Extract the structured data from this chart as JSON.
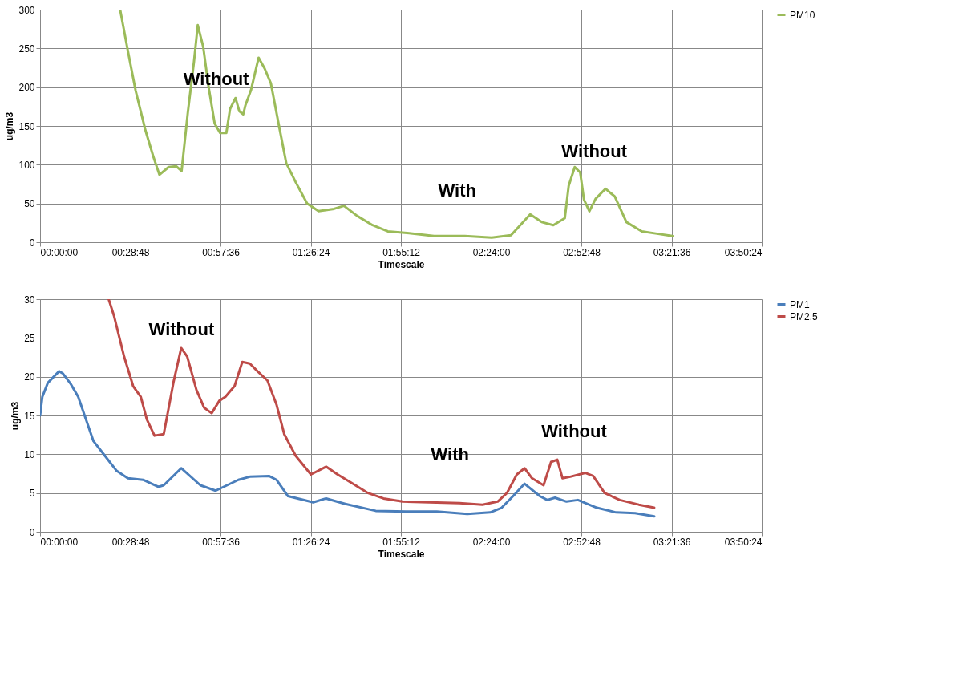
{
  "chart_data": [
    {
      "type": "line",
      "xlabel": "Timescale",
      "ylabel": "ug/m3",
      "xlim": [
        0,
        3.84
      ],
      "ylim": [
        0,
        300
      ],
      "yticks": [
        0,
        50,
        100,
        150,
        200,
        250,
        300
      ],
      "xticks": [
        {
          "value": 0,
          "label": "00:00:00"
        },
        {
          "value": 0.48,
          "label": "00:28:48"
        },
        {
          "value": 0.96,
          "label": "00:57:36"
        },
        {
          "value": 1.44,
          "label": "01:26:24"
        },
        {
          "value": 1.92,
          "label": "01:55:12"
        },
        {
          "value": 2.4,
          "label": "02:24:00"
        },
        {
          "value": 2.88,
          "label": "02:52:48"
        },
        {
          "value": 3.36,
          "label": "03:21:36"
        },
        {
          "value": 3.84,
          "label": "03:50:24"
        }
      ],
      "grid": true,
      "legend": "right",
      "marker": "none",
      "line_style": "solid",
      "annotations": [
        "Without",
        "With",
        "Without"
      ],
      "series": [
        {
          "name": "PM10",
          "color": "#9bbb59",
          "x": [
            0.426,
            0.467,
            0.508,
            0.561,
            0.602,
            0.635,
            0.684,
            0.725,
            0.753,
            0.786,
            0.819,
            0.839,
            0.868,
            0.897,
            0.929,
            0.958,
            0.991,
            1.011,
            1.04,
            1.06,
            1.081,
            1.093,
            1.122,
            1.163,
            1.195,
            1.228,
            1.269,
            1.31,
            1.359,
            1.421,
            1.482,
            1.564,
            1.617,
            1.687,
            1.769,
            1.85,
            1.953,
            2.096,
            2.26,
            2.403,
            2.506,
            2.608,
            2.669,
            2.731,
            2.792,
            2.813,
            2.845,
            2.874,
            2.894,
            2.923,
            2.956,
            3.009,
            3.058,
            3.12,
            3.202,
            3.283,
            3.365
          ],
          "values": [
            300,
            247,
            196,
            144,
            111,
            87,
            97,
            98,
            92,
            167,
            233,
            280,
            252,
            200,
            153,
            141,
            141,
            172,
            186,
            169,
            165,
            177,
            196,
            238,
            224,
            205,
            153,
            102,
            78,
            50,
            40,
            43,
            47,
            34,
            22,
            14,
            12,
            8,
            8,
            6,
            9,
            36,
            26,
            22,
            31,
            73,
            97,
            90,
            55,
            40,
            56,
            69,
            59,
            26,
            14,
            11,
            8
          ]
        }
      ]
    },
    {
      "type": "line",
      "xlabel": "Timescale",
      "ylabel": "ug/m3",
      "xlim": [
        0,
        3.84
      ],
      "ylim": [
        0,
        30
      ],
      "yticks": [
        0,
        5,
        10,
        15,
        20,
        25,
        30
      ],
      "xticks": [
        {
          "value": 0,
          "label": "00:00:00"
        },
        {
          "value": 0.48,
          "label": "00:28:48"
        },
        {
          "value": 0.96,
          "label": "00:57:36"
        },
        {
          "value": 1.44,
          "label": "01:26:24"
        },
        {
          "value": 1.92,
          "label": "01:55:12"
        },
        {
          "value": 2.4,
          "label": "02:24:00"
        },
        {
          "value": 2.88,
          "label": "02:52:48"
        },
        {
          "value": 3.36,
          "label": "03:21:36"
        },
        {
          "value": 3.84,
          "label": "03:50:24"
        }
      ],
      "grid": true,
      "legend": "right",
      "marker": "none",
      "line_style": "solid",
      "annotations": [
        "Without",
        "With",
        "Without"
      ],
      "series": [
        {
          "name": "PM1",
          "color": "#4a7ebb",
          "x": [
            0,
            0.012,
            0.041,
            0.073,
            0.101,
            0.122,
            0.162,
            0.203,
            0.244,
            0.284,
            0.345,
            0.406,
            0.467,
            0.548,
            0.629,
            0.658,
            0.751,
            0.853,
            0.934,
            1.055,
            1.116,
            1.218,
            1.258,
            1.319,
            1.453,
            1.522,
            1.624,
            1.786,
            1.948,
            2.111,
            2.273,
            2.395,
            2.456,
            2.517,
            2.578,
            2.659,
            2.699,
            2.74,
            2.801,
            2.862,
            2.963,
            3.065,
            3.166,
            3.268
          ],
          "values": [
            15,
            17.4,
            19.2,
            20.0,
            20.7,
            20.4,
            19.1,
            17.4,
            14.5,
            11.7,
            9.8,
            7.9,
            6.9,
            6.7,
            5.8,
            6.0,
            8.2,
            6.0,
            5.3,
            6.7,
            7.1,
            7.2,
            6.7,
            4.6,
            3.8,
            4.3,
            3.6,
            2.7,
            2.6,
            2.6,
            2.3,
            2.5,
            3.1,
            4.6,
            6.2,
            4.6,
            4.1,
            4.4,
            3.9,
            4.1,
            3.1,
            2.5,
            2.4,
            2.0
          ]
        },
        {
          "name": "PM2.5",
          "color": "#be4b48",
          "x": [
            0.365,
            0.394,
            0.447,
            0.495,
            0.536,
            0.568,
            0.609,
            0.658,
            0.71,
            0.751,
            0.783,
            0.832,
            0.873,
            0.913,
            0.954,
            0.986,
            1.035,
            1.076,
            1.116,
            1.157,
            1.21,
            1.258,
            1.299,
            1.36,
            1.441,
            1.522,
            1.583,
            1.664,
            1.745,
            1.827,
            1.928,
            2.07,
            2.232,
            2.354,
            2.435,
            2.484,
            2.537,
            2.578,
            2.618,
            2.679,
            2.719,
            2.752,
            2.78,
            2.821,
            2.902,
            2.943,
            3.004,
            3.085,
            3.186,
            3.268
          ],
          "values": [
            30,
            27.8,
            22.6,
            18.8,
            17.4,
            14.5,
            12.4,
            12.6,
            19.3,
            23.7,
            22.6,
            18.3,
            16.0,
            15.3,
            16.9,
            17.4,
            18.8,
            21.9,
            21.7,
            20.7,
            19.5,
            16.4,
            12.6,
            9.8,
            7.4,
            8.4,
            7.4,
            6.2,
            5.0,
            4.3,
            3.9,
            3.8,
            3.7,
            3.5,
            3.9,
            5.0,
            7.4,
            8.2,
            6.9,
            6.0,
            9.0,
            9.3,
            6.9,
            7.1,
            7.6,
            7.2,
            5.0,
            4.1,
            3.5,
            3.1
          ]
        }
      ]
    }
  ]
}
